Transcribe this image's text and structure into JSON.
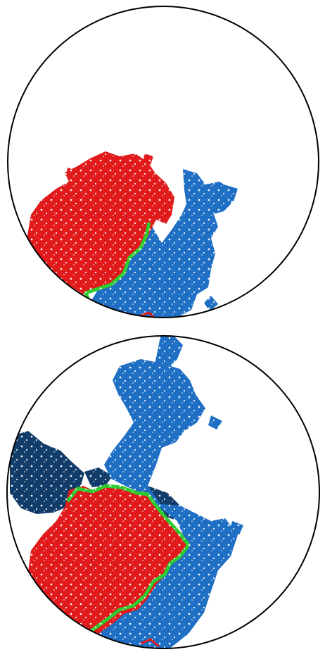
{
  "colors": {
    "background": "#ffffff",
    "outline": "#000000",
    "red_cluster": "#e11b1b",
    "light_blue_cluster": "#1f6fc4",
    "dark_blue_cluster": "#123d6b",
    "green_interface": "#2ecc2e"
  },
  "panels": [
    {
      "name": "top-panel",
      "clusters": [
        "red_cluster",
        "light_blue_cluster"
      ],
      "interface": "green_interface"
    },
    {
      "name": "bottom-panel",
      "clusters": [
        "dark_blue_cluster",
        "light_blue_cluster",
        "red_cluster"
      ],
      "interface": "green_interface"
    }
  ]
}
